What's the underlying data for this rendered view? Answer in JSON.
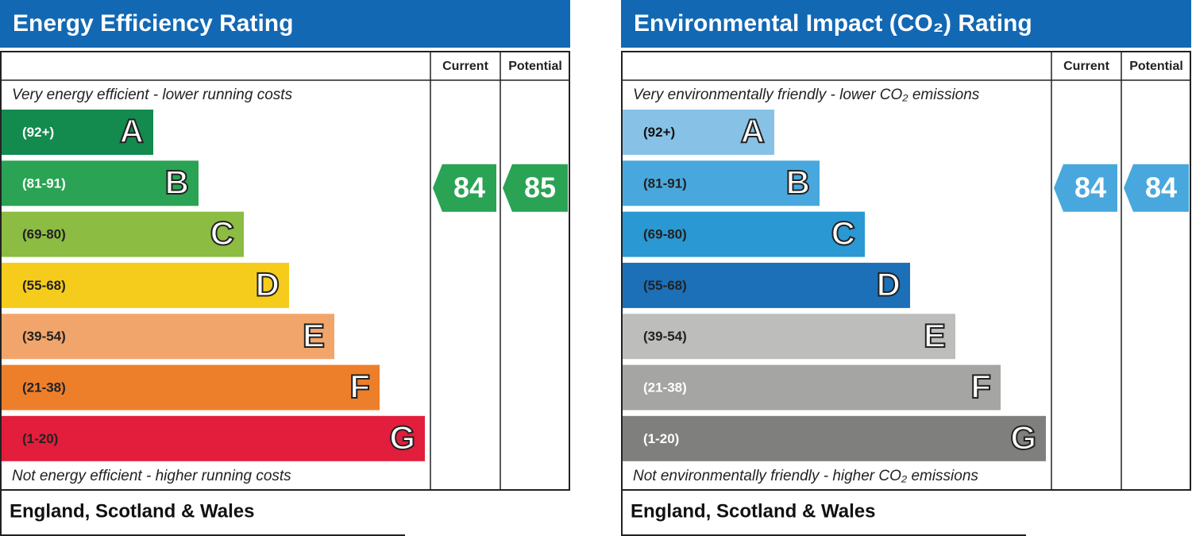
{
  "chart_data": [
    {
      "type": "rating",
      "title": "Energy Efficiency Rating",
      "columns": [
        "Current",
        "Potential"
      ],
      "top_note": "Very energy efficient - lower running costs",
      "bottom_note": "Not energy efficient - higher running costs",
      "bands": [
        {
          "range": "(92+)",
          "letter": "A",
          "color": "#138a4e",
          "label_color": "#ffffff"
        },
        {
          "range": "(81-91)",
          "letter": "B",
          "color": "#2aa354",
          "label_color": "#ffffff"
        },
        {
          "range": "(69-80)",
          "letter": "C",
          "color": "#8cbc42",
          "label_color": "#222222"
        },
        {
          "range": "(55-68)",
          "letter": "D",
          "color": "#f6cc1c",
          "label_color": "#222222"
        },
        {
          "range": "(39-54)",
          "letter": "E",
          "color": "#f2a56b",
          "label_color": "#222222"
        },
        {
          "range": "(21-38)",
          "letter": "F",
          "color": "#ed7f2b",
          "label_color": "#222222"
        },
        {
          "range": "(1-20)",
          "letter": "G",
          "color": "#e21e3c",
          "label_color": "#222222"
        }
      ],
      "current": 84,
      "potential": 85,
      "footer": "England, Scotland & Wales"
    },
    {
      "type": "rating",
      "title": "Environmental Impact (CO₂) Rating",
      "columns": [
        "Current",
        "Potential"
      ],
      "top_note": "Very environmentally friendly - lower CO₂ emissions",
      "bottom_note": "Not environmentally friendly - higher CO₂ emissions",
      "bands": [
        {
          "range": "(92+)",
          "letter": "A",
          "color": "#87c2e6",
          "label_color": "#111111"
        },
        {
          "range": "(81-91)",
          "letter": "B",
          "color": "#48a8dd",
          "label_color": "#222222"
        },
        {
          "range": "(69-80)",
          "letter": "C",
          "color": "#2a98d2",
          "label_color": "#222222"
        },
        {
          "range": "(55-68)",
          "letter": "D",
          "color": "#1c70b8",
          "label_color": "#222222"
        },
        {
          "range": "(39-54)",
          "letter": "E",
          "color": "#bdbdbb",
          "label_color": "#222222"
        },
        {
          "range": "(21-38)",
          "letter": "F",
          "color": "#a5a5a3",
          "label_color": "#ffffff"
        },
        {
          "range": "(1-20)",
          "letter": "G",
          "color": "#7f7f7d",
          "label_color": "#ffffff"
        }
      ],
      "current": 84,
      "potential": 84,
      "footer": "England, Scotland & Wales"
    }
  ]
}
